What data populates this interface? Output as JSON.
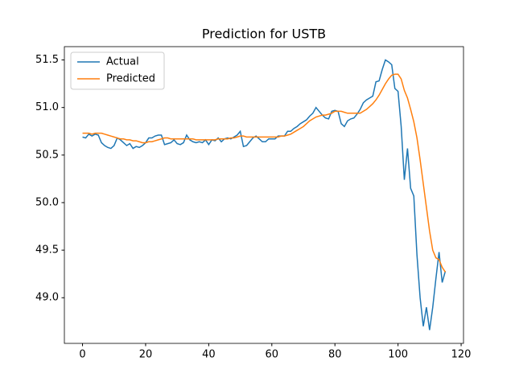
{
  "chart_data": {
    "type": "line",
    "title": "Prediction for USTB",
    "x": [
      0,
      1,
      2,
      3,
      4,
      5,
      6,
      7,
      8,
      9,
      10,
      11,
      12,
      13,
      14,
      15,
      16,
      17,
      18,
      19,
      20,
      21,
      22,
      23,
      24,
      25,
      26,
      27,
      28,
      29,
      30,
      31,
      32,
      33,
      34,
      35,
      36,
      37,
      38,
      39,
      40,
      41,
      42,
      43,
      44,
      45,
      46,
      47,
      48,
      49,
      50,
      51,
      52,
      53,
      54,
      55,
      56,
      57,
      58,
      59,
      60,
      61,
      62,
      63,
      64,
      65,
      66,
      67,
      68,
      69,
      70,
      71,
      72,
      73,
      74,
      75,
      76,
      77,
      78,
      79,
      80,
      81,
      82,
      83,
      84,
      85,
      86,
      87,
      88,
      89,
      90,
      91,
      92,
      93,
      94,
      95,
      96,
      97,
      98,
      99,
      100,
      101,
      102,
      103,
      104,
      105,
      106,
      107,
      108,
      109,
      110,
      111,
      112,
      113,
      114,
      115
    ],
    "series": [
      {
        "name": "Actual",
        "color": "#1f77b4",
        "values": [
          50.69,
          50.68,
          50.72,
          50.7,
          50.72,
          50.71,
          50.63,
          50.6,
          50.58,
          50.57,
          50.6,
          50.68,
          50.66,
          50.63,
          50.6,
          50.62,
          50.57,
          50.59,
          50.58,
          50.6,
          50.63,
          50.68,
          50.68,
          50.7,
          50.71,
          50.71,
          50.61,
          50.62,
          50.63,
          50.66,
          50.62,
          50.61,
          50.63,
          50.71,
          50.66,
          50.64,
          50.63,
          50.64,
          50.63,
          50.66,
          50.61,
          50.66,
          50.65,
          50.68,
          50.64,
          50.67,
          50.68,
          50.67,
          50.69,
          50.71,
          50.75,
          50.59,
          50.6,
          50.64,
          50.68,
          50.7,
          50.67,
          50.64,
          50.64,
          50.67,
          50.67,
          50.67,
          50.7,
          50.7,
          50.7,
          50.75,
          50.75,
          50.78,
          50.8,
          50.83,
          50.85,
          50.87,
          50.91,
          50.94,
          51.0,
          50.96,
          50.92,
          50.89,
          50.88,
          50.96,
          50.97,
          50.96,
          50.83,
          50.8,
          50.86,
          50.88,
          50.89,
          50.93,
          50.98,
          51.05,
          51.08,
          51.1,
          51.12,
          51.27,
          51.28,
          51.4,
          51.5,
          51.48,
          51.45,
          51.2,
          51.17,
          50.8,
          50.24,
          50.57,
          50.15,
          50.07,
          49.45,
          49.0,
          48.7,
          48.9,
          48.66,
          48.9,
          49.2,
          49.48,
          49.16,
          49.28
        ]
      },
      {
        "name": "Predicted",
        "color": "#ff7f0e",
        "values": [
          50.73,
          50.73,
          50.73,
          50.72,
          50.73,
          50.73,
          50.73,
          50.72,
          50.71,
          50.7,
          50.69,
          50.68,
          50.67,
          50.67,
          50.66,
          50.66,
          50.65,
          50.65,
          50.64,
          50.63,
          50.63,
          50.64,
          50.64,
          50.65,
          50.66,
          50.67,
          50.68,
          50.68,
          50.67,
          50.67,
          50.67,
          50.67,
          50.67,
          50.67,
          50.67,
          50.67,
          50.66,
          50.66,
          50.66,
          50.66,
          50.66,
          50.66,
          50.66,
          50.67,
          50.67,
          50.67,
          50.67,
          50.68,
          50.68,
          50.69,
          50.7,
          50.7,
          50.69,
          50.69,
          50.69,
          50.69,
          50.69,
          50.69,
          50.69,
          50.69,
          50.69,
          50.69,
          50.69,
          50.7,
          50.7,
          50.71,
          50.72,
          50.74,
          50.76,
          50.78,
          50.8,
          50.83,
          50.86,
          50.88,
          50.9,
          50.91,
          50.92,
          50.92,
          50.93,
          50.94,
          50.96,
          50.96,
          50.96,
          50.95,
          50.94,
          50.94,
          50.94,
          50.94,
          50.94,
          50.96,
          50.98,
          51.01,
          51.04,
          51.08,
          51.13,
          51.19,
          51.25,
          51.3,
          51.34,
          51.35,
          51.35,
          51.3,
          51.18,
          51.1,
          50.98,
          50.85,
          50.68,
          50.45,
          50.2,
          49.95,
          49.7,
          49.5,
          49.42,
          49.4,
          49.32,
          49.27
        ]
      }
    ],
    "xlim": [
      -5.75,
      120.75
    ],
    "xticks": [
      0,
      20,
      40,
      60,
      80,
      100,
      120
    ],
    "ylim": [
      48.52,
      51.64
    ],
    "yticks": [
      {
        "value": 49,
        "label": "49.0"
      },
      49.5,
      {
        "value": 50,
        "label": "50.0"
      },
      50.5,
      {
        "value": 51,
        "label": "51.0"
      },
      51.5
    ],
    "legend": "upper left",
    "grid": false
  }
}
